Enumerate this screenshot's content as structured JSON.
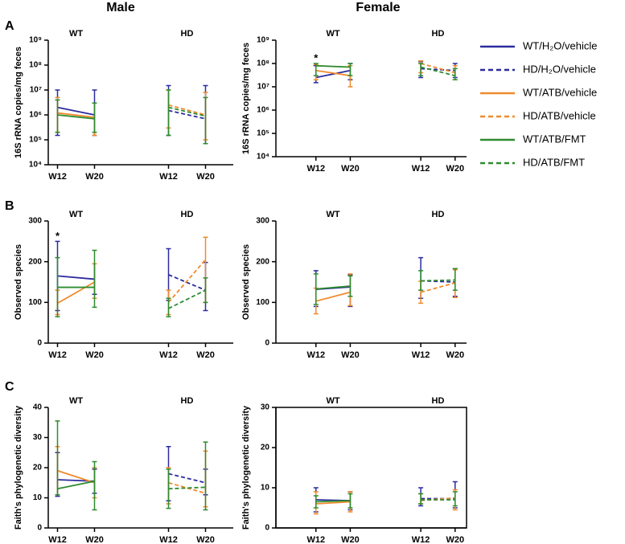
{
  "column_titles": [
    "Male",
    "Female"
  ],
  "panel_labels": [
    "A",
    "B",
    "C"
  ],
  "chart_data": [
    {
      "type": "line",
      "ylabel": "16S rRNA copies/mg feces",
      "log": true,
      "groups": [
        "WT",
        "HD"
      ],
      "categories": [
        "W12",
        "W20",
        "W12",
        "W20"
      ],
      "ylim": [
        10000,
        1000000000
      ],
      "yticks": [
        {
          "value": 10000,
          "label": "10⁴"
        },
        {
          "value": 100000,
          "label": "10⁵"
        },
        {
          "value": 1000000,
          "label": "10⁶"
        },
        {
          "value": 10000000,
          "label": "10⁷"
        },
        {
          "value": 100000000,
          "label": "10⁸"
        },
        {
          "value": 1000000000,
          "label": "10⁹"
        }
      ],
      "series": [
        {
          "name": "WT/H₂O/vehicle",
          "color": "#2b2ba0",
          "dashed": false,
          "values": [
            2000000,
            1000000,
            null,
            null
          ],
          "errors": [
            [
              150000,
              10000000
            ],
            [
              150000,
              10000000
            ],
            null,
            null
          ]
        },
        {
          "name": "HD/H₂O/vehicle",
          "color": "#2b2ba0",
          "dashed": true,
          "values": [
            null,
            null,
            1500000,
            700000
          ],
          "errors": [
            null,
            null,
            [
              150000,
              15000000
            ],
            [
              70000,
              15000000
            ]
          ]
        },
        {
          "name": "WT/ATB/vehicle",
          "color": "#f08a2c",
          "dashed": false,
          "values": [
            1200000,
            800000,
            null,
            null
          ],
          "errors": [
            [
              200000,
              5000000
            ],
            [
              150000,
              3000000
            ],
            null,
            null
          ]
        },
        {
          "name": "HD/ATB/vehicle",
          "color": "#f08a2c",
          "dashed": true,
          "values": [
            null,
            null,
            2500000,
            1000000
          ],
          "errors": [
            null,
            null,
            [
              300000,
              10000000
            ],
            [
              100000,
              8000000
            ]
          ]
        },
        {
          "name": "WT/ATB/FMT",
          "color": "#2e8b2e",
          "dashed": false,
          "values": [
            1000000,
            700000,
            null,
            null
          ],
          "errors": [
            [
              200000,
              4000000
            ],
            [
              200000,
              3000000
            ],
            null,
            null
          ]
        },
        {
          "name": "HD/ATB/FMT",
          "color": "#2e8b2e",
          "dashed": true,
          "values": [
            null,
            null,
            2000000,
            900000
          ],
          "errors": [
            null,
            null,
            [
              150000,
              10000000
            ],
            [
              70000,
              5000000
            ]
          ]
        }
      ]
    },
    {
      "type": "line",
      "ylabel": "16S rRNA copies/mg feces",
      "log": true,
      "groups": [
        "WT",
        "HD"
      ],
      "categories": [
        "W12",
        "W20",
        "W12",
        "W20"
      ],
      "annotations": [
        "*"
      ],
      "ylim": [
        10000,
        1000000000
      ],
      "yticks": [
        {
          "value": 10000,
          "label": "10⁴"
        },
        {
          "value": 100000,
          "label": "10⁵"
        },
        {
          "value": 1000000,
          "label": "10⁶"
        },
        {
          "value": 10000000,
          "label": "10⁷"
        },
        {
          "value": 100000000,
          "label": "10⁸"
        },
        {
          "value": 1000000000,
          "label": "10⁹"
        }
      ],
      "series": [
        {
          "name": "WT/H₂O/vehicle",
          "color": "#2b2ba0",
          "dashed": false,
          "values": [
            25000000,
            50000000,
            null,
            null
          ],
          "errors": [
            [
              15000000,
              80000000
            ],
            [
              20000000,
              100000000
            ],
            null,
            null
          ]
        },
        {
          "name": "HD/H₂O/vehicle",
          "color": "#2b2ba0",
          "dashed": true,
          "values": [
            null,
            null,
            60000000,
            50000000
          ],
          "errors": [
            null,
            null,
            [
              25000000,
              120000000
            ],
            [
              25000000,
              100000000
            ]
          ]
        },
        {
          "name": "WT/ATB/vehicle",
          "color": "#f08a2c",
          "dashed": false,
          "values": [
            50000000,
            30000000,
            null,
            null
          ],
          "errors": [
            [
              20000000,
              90000000
            ],
            [
              10000000,
              80000000
            ],
            null,
            null
          ]
        },
        {
          "name": "HD/ATB/vehicle",
          "color": "#f08a2c",
          "dashed": true,
          "values": [
            null,
            null,
            100000000,
            40000000
          ],
          "errors": [
            null,
            null,
            [
              40000000,
              130000000
            ],
            [
              20000000,
              80000000
            ]
          ]
        },
        {
          "name": "WT/ATB/FMT",
          "color": "#2e8b2e",
          "dashed": false,
          "values": [
            80000000,
            70000000,
            null,
            null
          ],
          "errors": [
            [
              30000000,
              100000000
            ],
            [
              30000000,
              100000000
            ],
            null,
            null
          ]
        },
        {
          "name": "HD/ATB/FMT",
          "color": "#2e8b2e",
          "dashed": true,
          "values": [
            null,
            null,
            70000000,
            30000000
          ],
          "errors": [
            null,
            null,
            [
              30000000,
              100000000
            ],
            [
              20000000,
              60000000
            ]
          ]
        }
      ]
    },
    {
      "type": "line",
      "ylabel": "Observed species",
      "log": false,
      "groups": [
        "WT",
        "HD"
      ],
      "categories": [
        "W12",
        "W20",
        "W12",
        "W20"
      ],
      "annotations": [
        "*"
      ],
      "ylim": [
        0,
        300
      ],
      "yticks": [
        0,
        100,
        200,
        300
      ],
      "series": [
        {
          "name": "WT/H₂O/vehicle",
          "color": "#2b2ba0",
          "dashed": false,
          "values": [
            165,
            157,
            null,
            null
          ],
          "errors": [
            [
              80,
              250
            ],
            [
              120,
              195
            ],
            null,
            null
          ]
        },
        {
          "name": "HD/H₂O/vehicle",
          "color": "#2b2ba0",
          "dashed": true,
          "values": [
            null,
            null,
            168,
            130
          ],
          "errors": [
            null,
            null,
            [
              105,
              232
            ],
            [
              80,
              198
            ]
          ]
        },
        {
          "name": "WT/ATB/vehicle",
          "color": "#f08a2c",
          "dashed": false,
          "values": [
            98,
            150,
            null,
            null
          ],
          "errors": [
            [
              70,
              130
            ],
            [
              110,
              195
            ],
            null,
            null
          ]
        },
        {
          "name": "HD/ATB/vehicle",
          "color": "#f08a2c",
          "dashed": true,
          "values": [
            null,
            null,
            100,
            205
          ],
          "errors": [
            null,
            null,
            [
              70,
              130
            ],
            [
              100,
              260
            ]
          ]
        },
        {
          "name": "WT/ATB/FMT",
          "color": "#2e8b2e",
          "dashed": false,
          "values": [
            137,
            137,
            null,
            null
          ],
          "errors": [
            [
              65,
              210
            ],
            [
              88,
              228
            ],
            null,
            null
          ]
        },
        {
          "name": "HD/ATB/FMT",
          "color": "#2e8b2e",
          "dashed": true,
          "values": [
            null,
            null,
            85,
            130
          ],
          "errors": [
            null,
            null,
            [
              65,
              110
            ],
            [
              100,
              160
            ]
          ]
        }
      ]
    },
    {
      "type": "line",
      "ylabel": "Observed species",
      "log": false,
      "groups": [
        "WT",
        "HD"
      ],
      "categories": [
        "W12",
        "W20",
        "W12",
        "W20"
      ],
      "ylim": [
        0,
        300
      ],
      "yticks": [
        0,
        100,
        200,
        300
      ],
      "series": [
        {
          "name": "WT/H₂O/vehicle",
          "color": "#2b2ba0",
          "dashed": false,
          "values": [
            132,
            138,
            null,
            null
          ],
          "errors": [
            [
              90,
              178
            ],
            [
              90,
              168
            ],
            null,
            null
          ]
        },
        {
          "name": "HD/H₂O/vehicle",
          "color": "#2b2ba0",
          "dashed": true,
          "values": [
            null,
            null,
            153,
            150
          ],
          "errors": [
            null,
            null,
            [
              110,
              210
            ],
            [
              115,
              183
            ]
          ]
        },
        {
          "name": "WT/ATB/vehicle",
          "color": "#f08a2c",
          "dashed": false,
          "values": [
            103,
            125,
            null,
            null
          ],
          "errors": [
            [
              72,
              135
            ],
            [
              92,
              170
            ],
            null,
            null
          ]
        },
        {
          "name": "HD/ATB/vehicle",
          "color": "#f08a2c",
          "dashed": true,
          "values": [
            null,
            null,
            125,
            148
          ],
          "errors": [
            null,
            null,
            [
              98,
              152
            ],
            [
              112,
              180
            ]
          ]
        },
        {
          "name": "WT/ATB/FMT",
          "color": "#2e8b2e",
          "dashed": false,
          "values": [
            133,
            140,
            null,
            null
          ],
          "errors": [
            [
              95,
              170
            ],
            [
              115,
              165
            ],
            null,
            null
          ]
        },
        {
          "name": "HD/ATB/FMT",
          "color": "#2e8b2e",
          "dashed": true,
          "values": [
            null,
            null,
            153,
            155
          ],
          "errors": [
            null,
            null,
            [
              130,
              178
            ],
            [
              130,
              183
            ]
          ]
        }
      ]
    },
    {
      "type": "line",
      "ylabel": "Faith's phylogenetic diversity",
      "log": false,
      "groups": [
        "WT",
        "HD"
      ],
      "categories": [
        "W12",
        "W20",
        "W12",
        "W20"
      ],
      "ylim": [
        0,
        40
      ],
      "yticks": [
        0,
        10,
        20,
        30,
        40
      ],
      "series": [
        {
          "name": "WT/H₂O/vehicle",
          "color": "#2b2ba0",
          "dashed": false,
          "values": [
            16,
            15.5,
            null,
            null
          ],
          "errors": [
            [
              10.5,
              25
            ],
            [
              11.5,
              19.5
            ],
            null,
            null
          ]
        },
        {
          "name": "HD/H₂O/vehicle",
          "color": "#2b2ba0",
          "dashed": true,
          "values": [
            null,
            null,
            18,
            15
          ],
          "errors": [
            null,
            null,
            [
              9,
              27
            ],
            [
              11,
              19.5
            ]
          ]
        },
        {
          "name": "WT/ATB/vehicle",
          "color": "#f08a2c",
          "dashed": false,
          "values": [
            19,
            15,
            null,
            null
          ],
          "errors": [
            [
              11,
              27
            ],
            [
              10,
              20
            ],
            null,
            null
          ]
        },
        {
          "name": "HD/ATB/vehicle",
          "color": "#f08a2c",
          "dashed": true,
          "values": [
            null,
            null,
            15,
            11.5
          ],
          "errors": [
            null,
            null,
            [
              8,
              20
            ],
            [
              7,
              25.5
            ]
          ]
        },
        {
          "name": "WT/ATB/FMT",
          "color": "#2e8b2e",
          "dashed": false,
          "values": [
            13,
            15.5,
            null,
            null
          ],
          "errors": [
            [
              11,
              35.5
            ],
            [
              6,
              22
            ],
            null,
            null
          ]
        },
        {
          "name": "HD/ATB/FMT",
          "color": "#2e8b2e",
          "dashed": true,
          "values": [
            null,
            null,
            13,
            13.5
          ],
          "errors": [
            null,
            null,
            [
              6.5,
              19.5
            ],
            [
              6,
              28.5
            ]
          ]
        }
      ]
    },
    {
      "type": "line",
      "ylabel": "Faith's phylogenetic diversity",
      "log": false,
      "frame": true,
      "groups": [
        "WT",
        "HD"
      ],
      "categories": [
        "W12",
        "W20",
        "W12",
        "W20"
      ],
      "ylim": [
        0,
        30
      ],
      "yticks": [
        0,
        10,
        20,
        30
      ],
      "series": [
        {
          "name": "WT/H₂O/vehicle",
          "color": "#2b2ba0",
          "dashed": false,
          "values": [
            7,
            6.8,
            null,
            null
          ],
          "errors": [
            [
              4,
              10
            ],
            [
              4.5,
              9
            ],
            null,
            null
          ]
        },
        {
          "name": "HD/H₂O/vehicle",
          "color": "#2b2ba0",
          "dashed": true,
          "values": [
            null,
            null,
            7.3,
            7.3
          ],
          "errors": [
            null,
            null,
            [
              5.5,
              10
            ],
            [
              5,
              11.5
            ]
          ]
        },
        {
          "name": "WT/ATB/vehicle",
          "color": "#f08a2c",
          "dashed": false,
          "values": [
            6,
            6.5,
            null,
            null
          ],
          "errors": [
            [
              3.5,
              9
            ],
            [
              4,
              9
            ],
            null,
            null
          ]
        },
        {
          "name": "HD/ATB/vehicle",
          "color": "#f08a2c",
          "dashed": true,
          "values": [
            null,
            null,
            6.8,
            7.5
          ],
          "errors": [
            null,
            null,
            [
              6,
              8.5
            ],
            [
              4.5,
              9.5
            ]
          ]
        },
        {
          "name": "WT/ATB/FMT",
          "color": "#2e8b2e",
          "dashed": false,
          "values": [
            6.5,
            6.8,
            null,
            null
          ],
          "errors": [
            [
              5,
              8
            ],
            [
              5,
              8.5
            ],
            null,
            null
          ]
        },
        {
          "name": "HD/ATB/FMT",
          "color": "#2e8b2e",
          "dashed": true,
          "values": [
            null,
            null,
            7,
            7
          ],
          "errors": [
            null,
            null,
            [
              6,
              8.5
            ],
            [
              5.5,
              9
            ]
          ]
        }
      ]
    }
  ]
}
